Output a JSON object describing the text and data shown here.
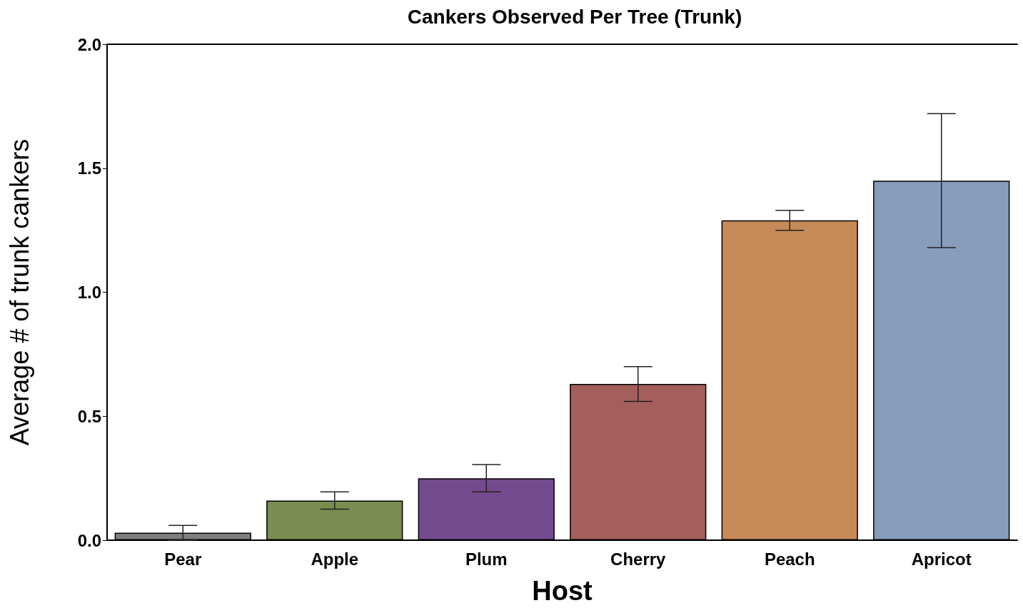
{
  "chart_data": {
    "type": "bar",
    "title": "Cankers Observed Per Tree (Trunk)",
    "xlabel": "Host",
    "ylabel": "Average # of trunk cankers",
    "categories": [
      "Pear",
      "Apple",
      "Plum",
      "Cherry",
      "Peach",
      "Apricot"
    ],
    "values": [
      0.03,
      0.16,
      0.25,
      0.63,
      1.29,
      1.45
    ],
    "errors": [
      0.03,
      0.035,
      0.055,
      0.07,
      0.04,
      0.27
    ],
    "colors": [
      "#7f7f7f",
      "#7a8c50",
      "#744a8e",
      "#a45e5c",
      "#c68a58",
      "#879dbb"
    ],
    "ylim": [
      0,
      2.0
    ],
    "yticks": [
      {
        "value": 0,
        "label": "0.0"
      },
      {
        "value": 0.5,
        "label": "0.5"
      },
      {
        "value": 1,
        "label": "1.0"
      },
      {
        "value": 1.5,
        "label": "1.5"
      },
      {
        "value": 2,
        "label": "2.0"
      }
    ],
    "grid": false
  }
}
